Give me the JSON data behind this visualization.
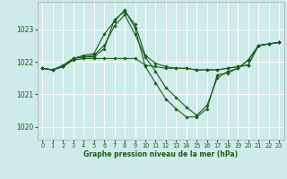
{
  "title": "Graphe pression niveau de la mer (hPa)",
  "bg_color": "#ceeaea",
  "grid_color": "#ffffff",
  "line_color": "#1a5c1a",
  "xlim": [
    -0.5,
    23.5
  ],
  "ylim": [
    1019.6,
    1023.85
  ],
  "yticks": [
    1020,
    1021,
    1022,
    1023
  ],
  "xticks": [
    0,
    1,
    2,
    3,
    4,
    5,
    6,
    7,
    8,
    9,
    10,
    11,
    12,
    13,
    14,
    15,
    16,
    17,
    18,
    19,
    20,
    21,
    22,
    23
  ],
  "series": [
    {
      "x": [
        0,
        1,
        2,
        3,
        4,
        5,
        6,
        7,
        8,
        9,
        10,
        11,
        12,
        13,
        14,
        15,
        16,
        17,
        18,
        19,
        20,
        21,
        22,
        23
      ],
      "y": [
        1021.8,
        1021.75,
        1021.85,
        1022.05,
        1022.1,
        1022.1,
        1022.1,
        1022.1,
        1022.1,
        1022.1,
        1021.9,
        1021.85,
        1021.8,
        1021.8,
        1021.8,
        1021.75,
        1021.75,
        1021.75,
        1021.8,
        1021.85,
        1021.9,
        1022.5,
        1022.55,
        1022.6
      ]
    },
    {
      "x": [
        0,
        1,
        2,
        3,
        4,
        5,
        6,
        7,
        8,
        9,
        10,
        11,
        12,
        13,
        14,
        15,
        16,
        17,
        18,
        19,
        20,
        21,
        22,
        23
      ],
      "y": [
        1021.8,
        1021.75,
        1021.85,
        1022.1,
        1022.15,
        1022.15,
        1022.4,
        1023.3,
        1023.55,
        1023.15,
        1022.2,
        1021.95,
        1021.85,
        1021.8,
        1021.8,
        1021.75,
        1021.75,
        1021.75,
        1021.8,
        1021.85,
        1021.9,
        1022.5,
        1022.55,
        1022.6
      ]
    },
    {
      "x": [
        0,
        1,
        2,
        3,
        4,
        5,
        6,
        7,
        8,
        9,
        10,
        11,
        12,
        13,
        14,
        15,
        16,
        17,
        18,
        19,
        20,
        21,
        22,
        23
      ],
      "y": [
        1021.8,
        1021.75,
        1021.85,
        1022.1,
        1022.15,
        1022.2,
        1022.5,
        1023.1,
        1023.45,
        1022.85,
        1022.15,
        1021.7,
        1021.2,
        1020.9,
        1020.6,
        1020.35,
        1020.65,
        1021.5,
        1021.7,
        1021.8,
        1022.05,
        1022.5,
        1022.55,
        1022.6
      ]
    },
    {
      "x": [
        0,
        1,
        2,
        3,
        4,
        5,
        6,
        7,
        8,
        9,
        10,
        11,
        12,
        13,
        14,
        15,
        16,
        17,
        18,
        19,
        20,
        21,
        22,
        23
      ],
      "y": [
        1021.8,
        1021.75,
        1021.9,
        1022.1,
        1022.2,
        1022.25,
        1022.85,
        1023.25,
        1023.6,
        1023.05,
        1021.85,
        1021.35,
        1020.85,
        1020.55,
        1020.3,
        1020.3,
        1020.55,
        1021.6,
        1021.65,
        1021.8,
        1022.05,
        1022.5,
        1022.55,
        1022.6
      ]
    }
  ]
}
